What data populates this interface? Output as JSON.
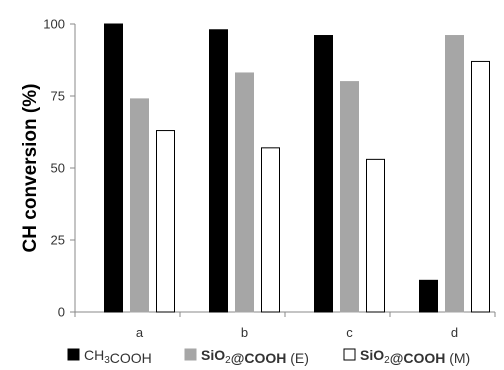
{
  "chart_data": {
    "type": "bar",
    "categories": [
      "a",
      "b",
      "c",
      "d"
    ],
    "series": [
      {
        "name": "CH3COOH",
        "values": [
          100,
          98,
          96,
          11
        ],
        "color": "#000000",
        "stroke": "#000000"
      },
      {
        "name": "SiO2@COOH (E)",
        "values": [
          74,
          83,
          80,
          96
        ],
        "color": "#a6a6a6",
        "stroke": "#a6a6a6"
      },
      {
        "name": "SiO2@COOH (M)",
        "values": [
          63,
          57,
          53,
          87
        ],
        "color": "#ffffff",
        "stroke": "#000000"
      }
    ],
    "ylabel": "CH conversion (%)",
    "xlabel": "",
    "ylim": [
      0,
      100
    ],
    "yticks": [
      0,
      25,
      50,
      75,
      100
    ],
    "grid": false,
    "legend_position": "bottom",
    "legend": [
      {
        "parts": [
          {
            "text": "CH",
            "style": "normal"
          },
          {
            "text": "3",
            "style": "sub"
          },
          {
            "text": "COOH",
            "style": "normal"
          }
        ]
      },
      {
        "parts": [
          {
            "text": "SiO",
            "style": "bold"
          },
          {
            "text": "2",
            "style": "sub"
          },
          {
            "text": "@COOH",
            "style": "bold"
          },
          {
            "text": " (E)",
            "style": "normal"
          }
        ]
      },
      {
        "parts": [
          {
            "text": "SiO",
            "style": "bold"
          },
          {
            "text": "2",
            "style": "sub"
          },
          {
            "text": "@COOH",
            "style": "bold"
          },
          {
            "text": " (M)",
            "style": "normal"
          }
        ]
      }
    ]
  }
}
